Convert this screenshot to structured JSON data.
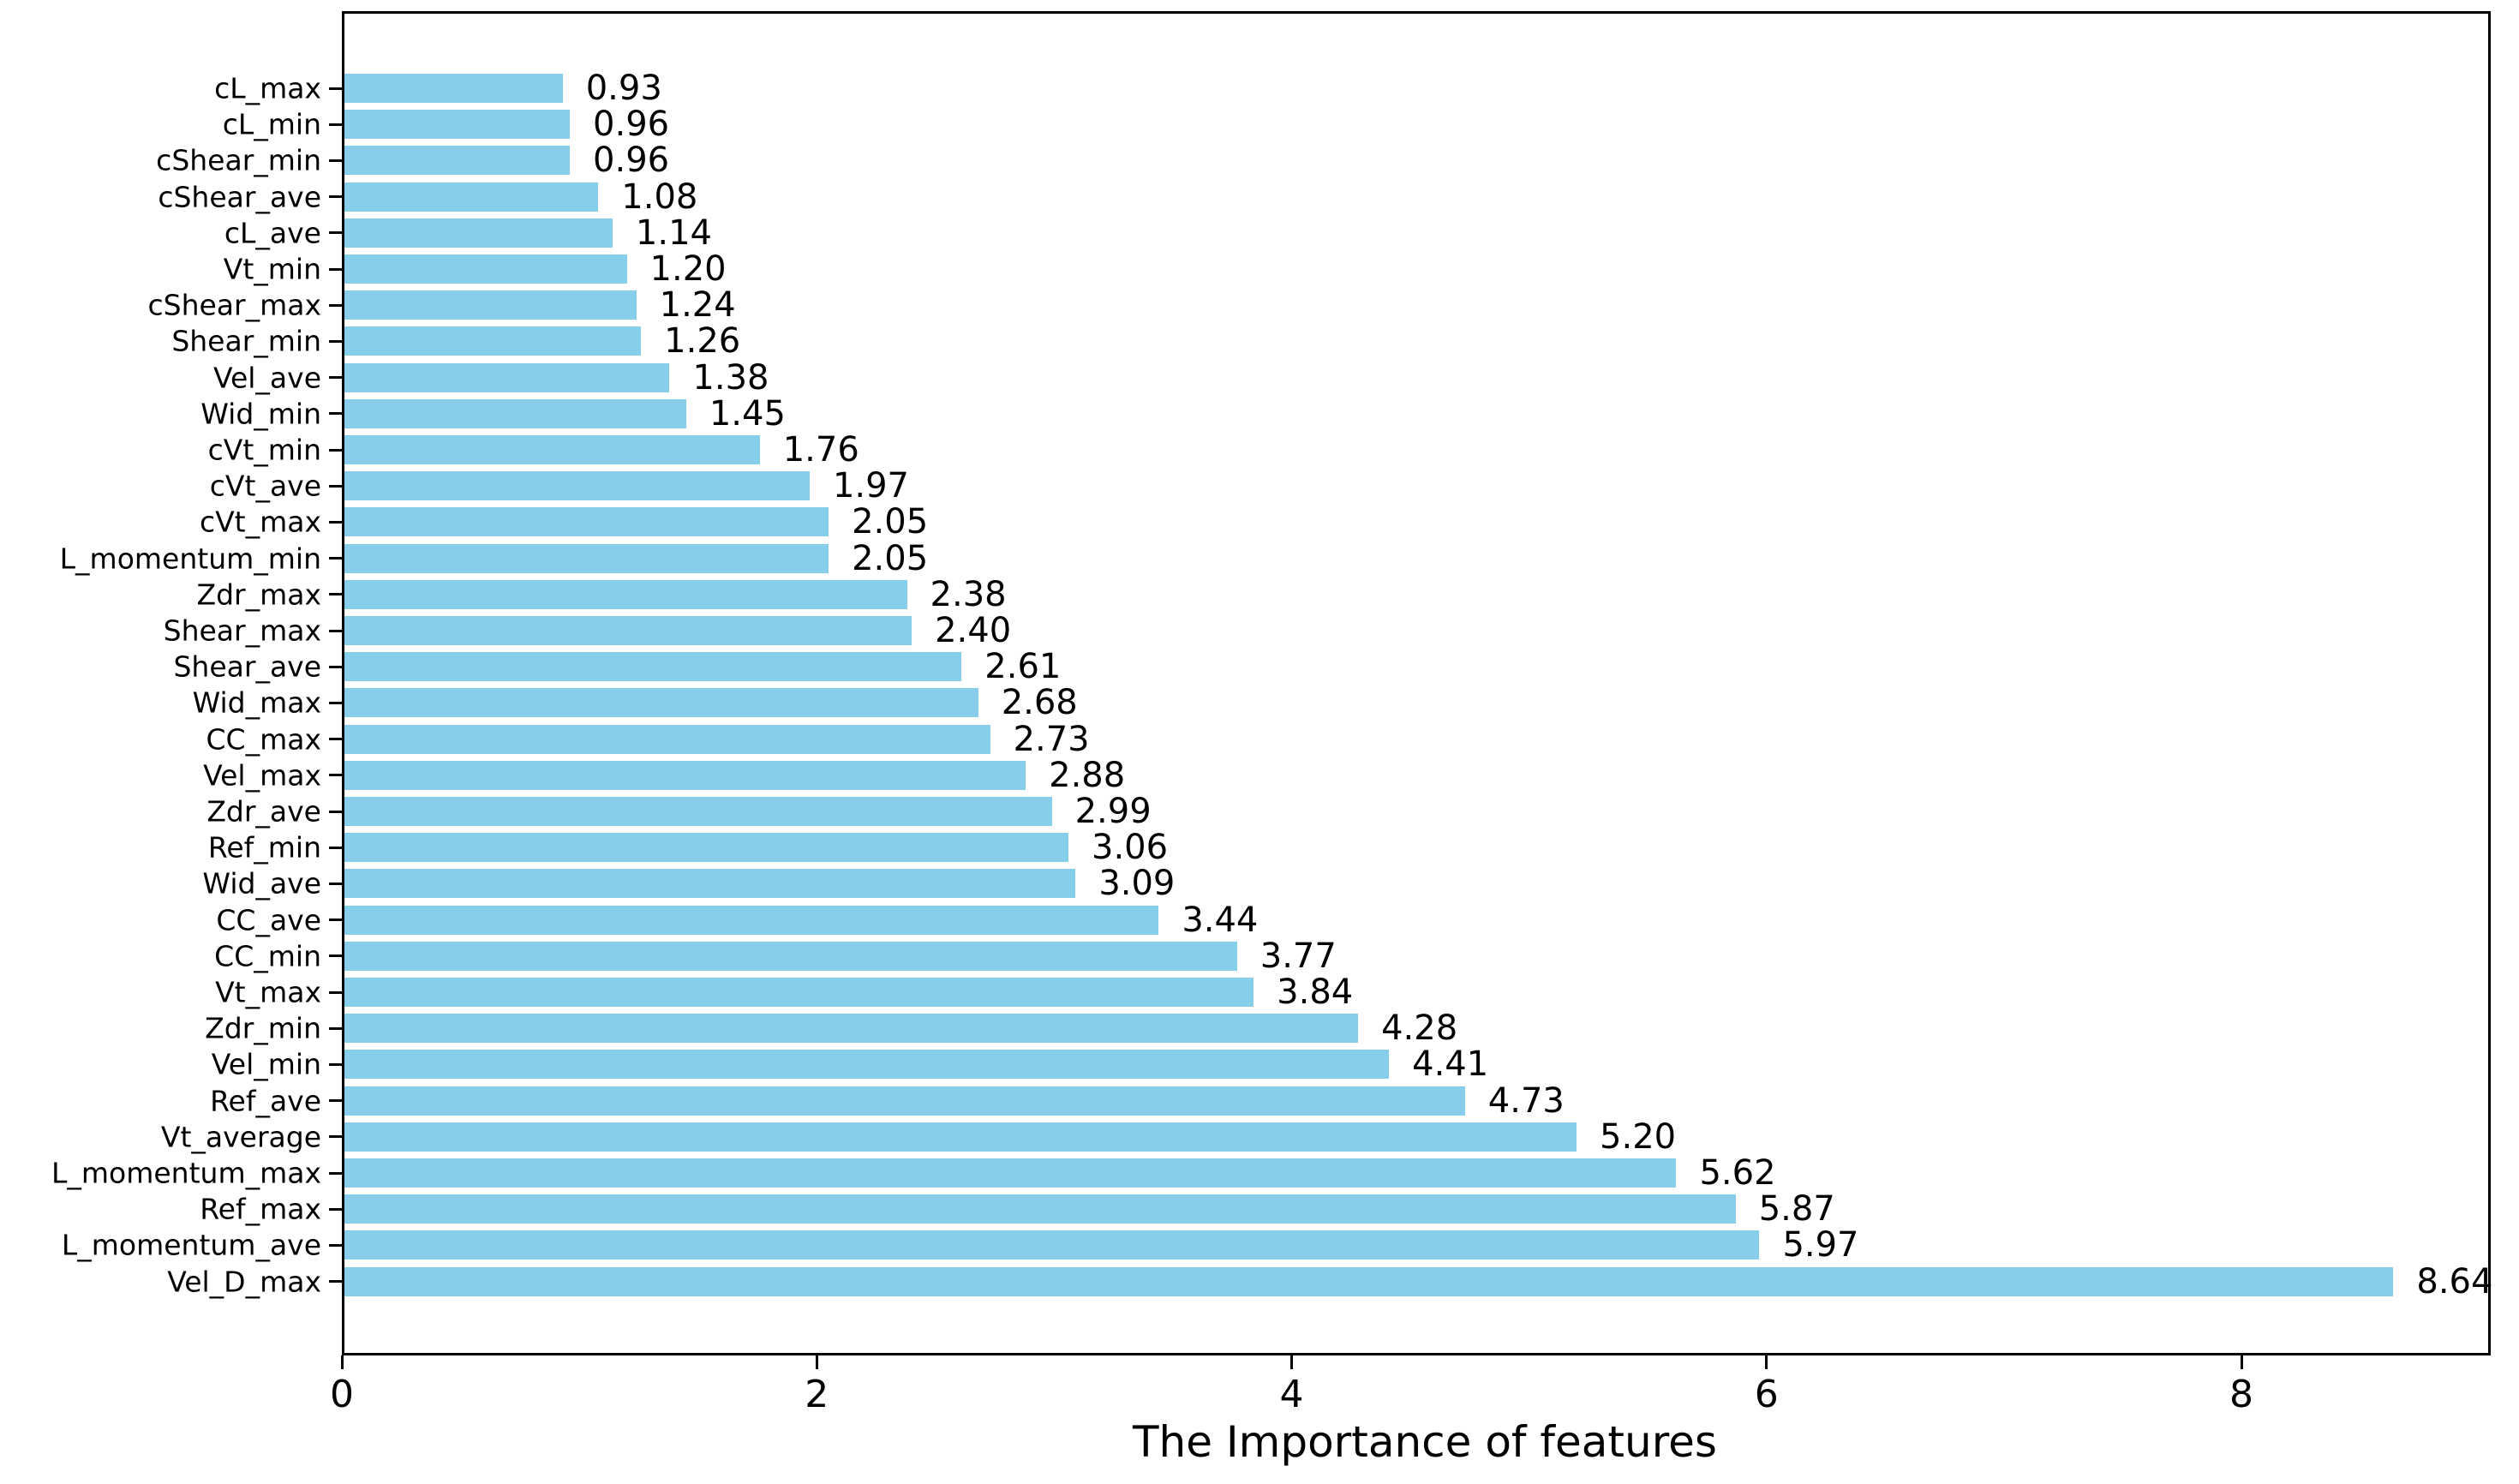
{
  "chart_data": {
    "type": "bar",
    "orientation": "horizontal",
    "title": "",
    "xlabel": "The Importance of features",
    "ylabel": "",
    "categories": [
      "cL_max",
      "cL_min",
      "cShear_min",
      "cShear_ave",
      "cL_ave",
      "Vt_min",
      "cShear_max",
      "Shear_min",
      "Vel_ave",
      "Wid_min",
      "cVt_min",
      "cVt_ave",
      "cVt_max",
      "L_momentum_min",
      "Zdr_max",
      "Shear_max",
      "Shear_ave",
      "Wid_max",
      "CC_max",
      "Vel_max",
      "Zdr_ave",
      "Ref_min",
      "Wid_ave",
      "CC_ave",
      "CC_min",
      "Vt_max",
      "Zdr_min",
      "Vel_min",
      "Ref_ave",
      "Vt_average",
      "L_momentum_max",
      "Ref_max",
      "L_momentum_ave",
      "Vel_D_max"
    ],
    "values": [
      0.93,
      0.96,
      0.96,
      1.08,
      1.14,
      1.2,
      1.24,
      1.26,
      1.38,
      1.45,
      1.76,
      1.97,
      2.05,
      2.05,
      2.38,
      2.4,
      2.61,
      2.68,
      2.73,
      2.88,
      2.99,
      3.06,
      3.09,
      3.44,
      3.77,
      3.84,
      4.28,
      4.41,
      4.73,
      5.2,
      5.62,
      5.87,
      5.97,
      8.64
    ],
    "value_label_decimals": 2,
    "x_ticks": [
      0,
      2,
      4,
      6,
      8
    ],
    "xlim": [
      0,
      9.05
    ],
    "grid": false,
    "legend": "none",
    "bar_color": "#87CEEB",
    "text_color": "#000000",
    "background_color": "#ffffff"
  }
}
